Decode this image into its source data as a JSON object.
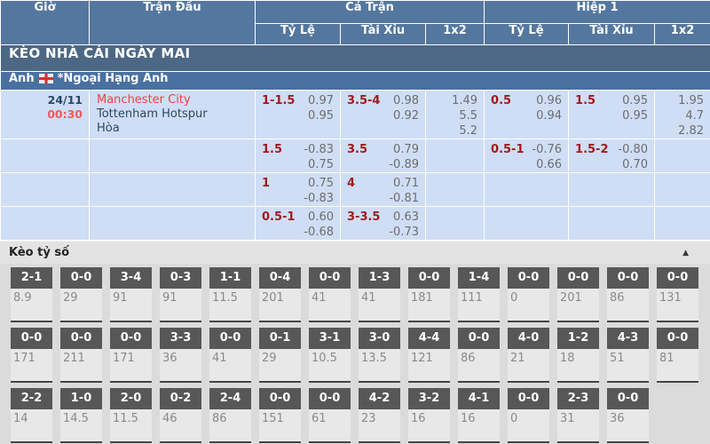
{
  "table_header": {
    "time": "Giờ",
    "match": "Trận Đấu",
    "full_match": "Cả Trận",
    "first_half": "Hiệp 1",
    "handicap": "Tỷ Lệ",
    "over_under": "Tài Xỉu",
    "one_x_two": "1x2"
  },
  "banner": {
    "title": "KÈO NHÀ CÁI NGÀY MAI"
  },
  "league": {
    "country": "Anh",
    "flag_icon": "england-flag",
    "name": "*Ngoại Hạng Anh"
  },
  "match": {
    "date": "24/11",
    "time": "00:30",
    "home": "Manchester City",
    "away": "Tottenham Hotspur",
    "draw": "Hòa"
  },
  "odds_rows": [
    {
      "ft_hdp": {
        "line": "1-1.5",
        "top": "0.97",
        "bot": "0.95"
      },
      "ft_ou": {
        "line": "3.5-4",
        "top": "0.98",
        "bot": "0.92"
      },
      "ft_1x2": [
        "1.49",
        "5.5",
        "5.2"
      ],
      "h1_hdp": {
        "line": "0.5",
        "top": "0.96",
        "bot": "0.94"
      },
      "h1_ou": {
        "line": "1.5",
        "top": "0.95",
        "bot": "0.95"
      },
      "h1_1x2": [
        "1.95",
        "4.7",
        "2.82"
      ]
    },
    {
      "ft_hdp": {
        "line": "1.5",
        "top": "-0.83",
        "bot": "0.75"
      },
      "ft_ou": {
        "line": "3.5",
        "top": "0.79",
        "bot": "-0.89"
      },
      "h1_hdp": {
        "line": "0.5-1",
        "top": "-0.76",
        "bot": "0.66"
      },
      "h1_ou": {
        "line": "1.5-2",
        "top": "-0.80",
        "bot": "0.70"
      }
    },
    {
      "ft_hdp": {
        "line": "1",
        "top": "0.75",
        "bot": "-0.83"
      },
      "ft_ou": {
        "line": "4",
        "top": "0.71",
        "bot": "-0.81"
      }
    },
    {
      "ft_hdp": {
        "line": "0.5-1",
        "top": "0.60",
        "bot": "-0.68"
      },
      "ft_ou": {
        "line": "3-3.5",
        "top": "0.63",
        "bot": "-0.73"
      }
    }
  ],
  "score_section": {
    "title": "Kèo tỷ số",
    "collapse_icon": "triangle-up",
    "rows": [
      [
        {
          "score": "2-1",
          "odds": "8.9"
        },
        {
          "score": "0-0",
          "odds": "29"
        },
        {
          "score": "3-4",
          "odds": "91"
        },
        {
          "score": "0-3",
          "odds": "91"
        },
        {
          "score": "1-1",
          "odds": "11.5"
        },
        {
          "score": "0-4",
          "odds": "201"
        },
        {
          "score": "0-0",
          "odds": "41"
        },
        {
          "score": "1-3",
          "odds": "41"
        },
        {
          "score": "0-0",
          "odds": "181"
        },
        {
          "score": "1-4",
          "odds": "111"
        },
        {
          "score": "0-0",
          "odds": "0"
        },
        {
          "score": "0-0",
          "odds": "201"
        },
        {
          "score": "0-0",
          "odds": "86"
        },
        {
          "score": "0-0",
          "odds": "131"
        }
      ],
      [
        {
          "score": "0-0",
          "odds": "171"
        },
        {
          "score": "0-0",
          "odds": "211"
        },
        {
          "score": "0-0",
          "odds": "171"
        },
        {
          "score": "3-3",
          "odds": "36"
        },
        {
          "score": "0-0",
          "odds": "41"
        },
        {
          "score": "0-1",
          "odds": "29"
        },
        {
          "score": "3-1",
          "odds": "10.5"
        },
        {
          "score": "3-0",
          "odds": "13.5"
        },
        {
          "score": "4-4",
          "odds": "121"
        },
        {
          "score": "0-0",
          "odds": "86"
        },
        {
          "score": "4-0",
          "odds": "21"
        },
        {
          "score": "1-2",
          "odds": "18"
        },
        {
          "score": "4-3",
          "odds": "51"
        },
        {
          "score": "0-0",
          "odds": "81"
        }
      ],
      [
        {
          "score": "2-2",
          "odds": "14"
        },
        {
          "score": "1-0",
          "odds": "14.5"
        },
        {
          "score": "2-0",
          "odds": "11.5"
        },
        {
          "score": "0-2",
          "odds": "46"
        },
        {
          "score": "2-4",
          "odds": "86"
        },
        {
          "score": "0-0",
          "odds": "151"
        },
        {
          "score": "0-0",
          "odds": "61"
        },
        {
          "score": "4-2",
          "odds": "23"
        },
        {
          "score": "3-2",
          "odds": "16"
        },
        {
          "score": "4-1",
          "odds": "16"
        },
        {
          "score": "0-0",
          "odds": "0"
        },
        {
          "score": "2-3",
          "odds": "31"
        },
        {
          "score": "0-0",
          "odds": "36"
        }
      ]
    ]
  },
  "colors": {
    "header_blue": "#54779f",
    "banner_blue": "#4c6885",
    "league_blue": "#4a70a2",
    "row_light_blue": "#cfdef5",
    "handicap_red": "#9e1b1b",
    "team_home_red": "#ee4040",
    "time_red": "#f05a5a",
    "navy_text": "#2c4763",
    "odds_gray": "#6d6d6d",
    "score_box_gray": "#575757"
  }
}
